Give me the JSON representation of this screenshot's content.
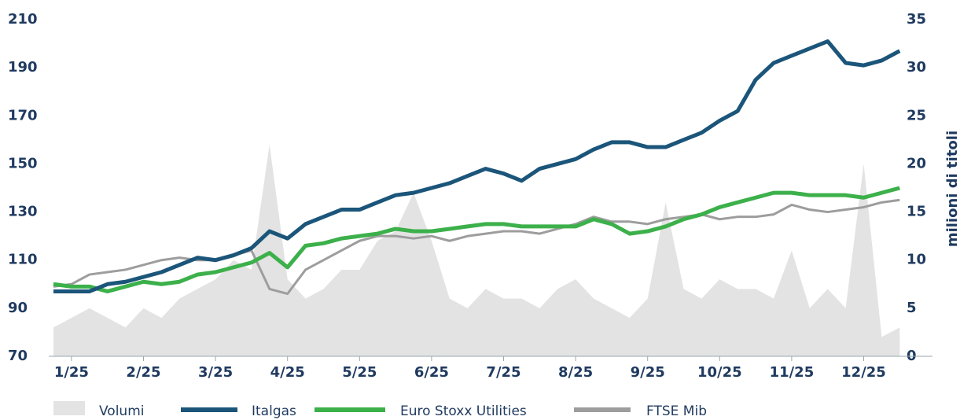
{
  "chart_data": {
    "type": "line",
    "y2_label": "milioni di titoli",
    "categories": [
      null,
      "1/25",
      null,
      null,
      null,
      "2/25",
      null,
      null,
      null,
      "3/25",
      null,
      null,
      null,
      "4/25",
      null,
      null,
      null,
      "5/25",
      null,
      null,
      null,
      "6/25",
      null,
      null,
      null,
      "7/25",
      null,
      null,
      null,
      "8/25",
      null,
      null,
      null,
      "9/25",
      null,
      null,
      null,
      "10/25",
      null,
      null,
      null,
      "11/25",
      null,
      null,
      null,
      "12/25",
      null,
      null
    ],
    "series": [
      {
        "name": "Volumi",
        "color": "#e3e3e3",
        "axis": "y2",
        "kind": "area",
        "values": [
          3,
          4,
          5,
          4,
          3,
          5,
          4,
          6,
          7,
          8,
          10,
          9,
          22,
          8,
          6,
          7,
          9,
          9,
          12,
          13,
          17,
          12,
          6,
          5,
          7,
          6,
          6,
          5,
          7,
          8,
          6,
          5,
          4,
          6,
          16,
          7,
          6,
          8,
          7,
          7,
          6,
          11,
          5,
          7,
          5,
          20,
          2,
          3
        ]
      },
      {
        "name": "Italgas",
        "color": "#1b557a",
        "values": [
          97,
          97,
          97,
          100,
          101,
          103,
          105,
          108,
          111,
          110,
          112,
          115,
          122,
          119,
          125,
          128,
          131,
          131,
          134,
          137,
          138,
          140,
          142,
          145,
          148,
          146,
          143,
          148,
          150,
          152,
          156,
          159,
          159,
          157,
          157,
          160,
          163,
          168,
          172,
          185,
          192,
          195,
          198,
          201,
          192,
          191,
          193,
          197
        ]
      },
      {
        "name": "Euro Stoxx Utilities",
        "color": "#3cb04a",
        "values": [
          100,
          99,
          99,
          97,
          99,
          101,
          100,
          101,
          104,
          105,
          107,
          109,
          113,
          107,
          116,
          117,
          119,
          120,
          121,
          123,
          122,
          122,
          123,
          124,
          125,
          125,
          124,
          124,
          124,
          124,
          127,
          125,
          121,
          122,
          124,
          127,
          129,
          132,
          134,
          136,
          138,
          138,
          137,
          137,
          137,
          136,
          138,
          140
        ]
      },
      {
        "name": "FTSE Mib",
        "color": "#9d9d9d",
        "values": [
          99,
          100,
          104,
          105,
          106,
          108,
          110,
          111,
          110,
          110,
          112,
          114,
          98,
          96,
          106,
          110,
          114,
          118,
          120,
          120,
          119,
          120,
          118,
          120,
          121,
          122,
          122,
          121,
          123,
          125,
          128,
          126,
          126,
          125,
          127,
          128,
          129,
          127,
          128,
          128,
          129,
          133,
          131,
          130,
          131,
          132,
          134,
          135
        ]
      }
    ],
    "ylim": [
      70,
      210
    ],
    "yticks": [
      70,
      90,
      110,
      130,
      150,
      170,
      190,
      210
    ],
    "y2lim": [
      0,
      35
    ],
    "y2ticks": [
      0,
      5,
      10,
      15,
      20,
      25,
      30,
      35
    ]
  }
}
